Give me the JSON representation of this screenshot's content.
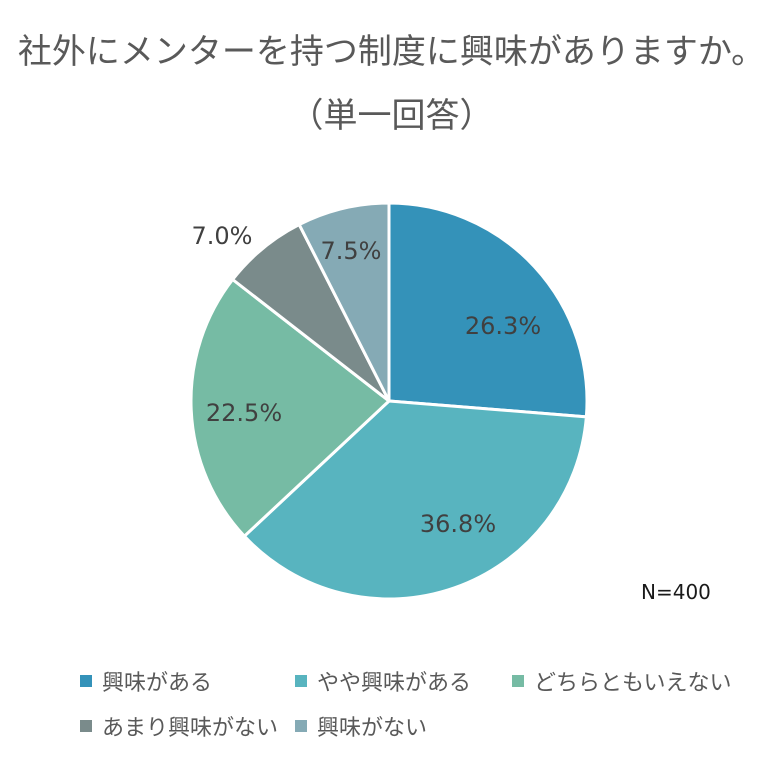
{
  "chart_data": {
    "type": "pie",
    "title_line1": "社外にメンターを持つ制度に興味がありますか。",
    "title_line2": "（単一回答）",
    "n_label": "N=400",
    "slices": [
      {
        "name": "興味がある",
        "value": 26.3,
        "label": "26.3%",
        "color": "#3492B9"
      },
      {
        "name": "やや興味がある",
        "value": 36.8,
        "label": "36.8%",
        "color": "#58B4BF"
      },
      {
        "name": "どちらともいえない",
        "value": 22.5,
        "label": "22.5%",
        "color": "#76BBA4"
      },
      {
        "name": "あまり興味がない",
        "value": 7.0,
        "label": "7.0%",
        "color": "#7A8B8B"
      },
      {
        "name": "興味がない",
        "value": 7.5,
        "label": "7.5%",
        "color": "#85AAB5"
      }
    ],
    "legend_position": "bottom"
  }
}
